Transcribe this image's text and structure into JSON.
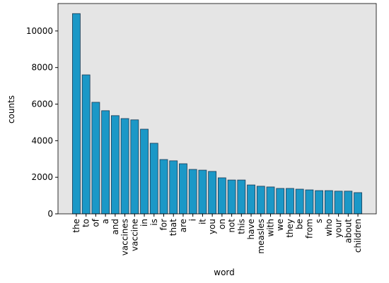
{
  "chart_data": {
    "type": "bar",
    "x_label": "word",
    "y_label": "counts",
    "categories": [
      "the",
      "to",
      "of",
      "a",
      "and",
      "vaccines",
      "vaccine",
      "in",
      "is",
      "for",
      "that",
      "are",
      "i",
      "it",
      "you",
      "on",
      "not",
      "this",
      "have",
      "measles",
      "with",
      "we",
      "they",
      "be",
      "from",
      "s",
      "who",
      "your",
      "about",
      "children"
    ],
    "values": [
      10950,
      7600,
      6100,
      5640,
      5370,
      5210,
      5140,
      4630,
      3860,
      2970,
      2900,
      2740,
      2430,
      2390,
      2320,
      1970,
      1850,
      1850,
      1580,
      1510,
      1470,
      1390,
      1390,
      1350,
      1310,
      1270,
      1270,
      1240,
      1240,
      1160
    ],
    "color": "#1b98c7",
    "edgecolor": "#1a3a55",
    "background": "#e5e5e5",
    "ylim": [
      0,
      11500
    ],
    "yticks": [
      0,
      2000,
      4000,
      6000,
      8000,
      10000
    ]
  }
}
